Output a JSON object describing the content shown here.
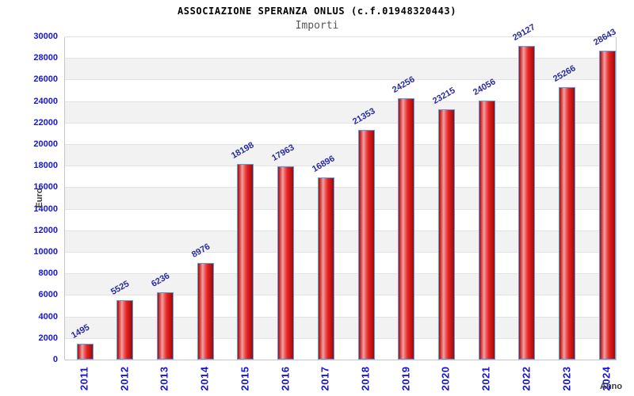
{
  "title": "ASSOCIAZIONE SPERANZA ONLUS (c.f.01948320443)",
  "subtitle": "Importi",
  "chart_data": {
    "type": "bar",
    "title": "ASSOCIAZIONE SPERANZA ONLUS (c.f.01948320443)",
    "subtitle": "Importi",
    "xlabel": "Anno",
    "ylabel": "Euro",
    "categories": [
      "2011",
      "2012",
      "2013",
      "2014",
      "2015",
      "2016",
      "2017",
      "2018",
      "2019",
      "2020",
      "2021",
      "2022",
      "2023",
      "2024"
    ],
    "values": [
      1495,
      5525,
      6236,
      8976,
      18198,
      17963,
      16896,
      21353,
      24256,
      23215,
      24056,
      29127,
      25266,
      28643
    ],
    "ylim": [
      0,
      30000
    ],
    "ytick_step": 2000,
    "grid": "horizontal gridlines with alternating white/gray bands",
    "legend": "none",
    "bar_labels_rotation_deg": -30,
    "xtick_rotation_deg": -90
  },
  "colors": {
    "bar_fill": "#e52222",
    "bar_highlight": "#efa2a2",
    "bar_border": "#56a0e8",
    "tick_label": "#1414dc",
    "value_label": "#2a2a9e",
    "axis_label": "#3a3a3a",
    "grid_line": "#e2e2e2",
    "band_alt": "#f2f2f2",
    "plot_border": "#c6c6c6",
    "title": "#000000",
    "subtitle": "#555555"
  }
}
